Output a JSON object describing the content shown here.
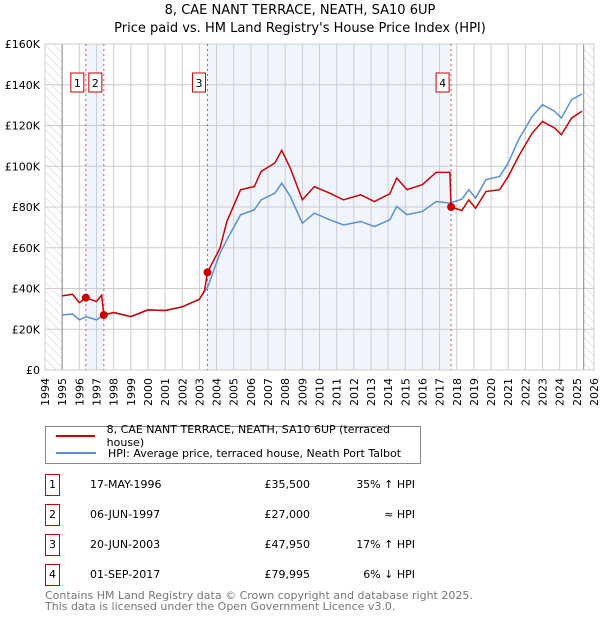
{
  "chart_data": {
    "type": "line",
    "title": "8, CAE NANT TERRACE, NEATH, SA10 6UP",
    "subtitle": "Price paid vs. HM Land Registry's House Price Index (HPI)",
    "xlim": [
      1994,
      2026
    ],
    "ylim": [
      0,
      160000
    ],
    "x_ticks": [
      "1994",
      "1995",
      "1996",
      "1997",
      "1998",
      "1999",
      "2000",
      "2001",
      "2002",
      "2003",
      "2004",
      "2005",
      "2006",
      "2007",
      "2008",
      "2009",
      "2010",
      "2011",
      "2012",
      "2013",
      "2014",
      "2015",
      "2016",
      "2017",
      "2018",
      "2019",
      "2020",
      "2021",
      "2022",
      "2023",
      "2024",
      "2025",
      "2026"
    ],
    "y_ticks": [
      {
        "v": 0,
        "label": "£0"
      },
      {
        "v": 20000,
        "label": "£20K"
      },
      {
        "v": 40000,
        "label": "£40K"
      },
      {
        "v": 60000,
        "label": "£60K"
      },
      {
        "v": 80000,
        "label": "£80K"
      },
      {
        "v": 100000,
        "label": "£100K"
      },
      {
        "v": 120000,
        "label": "£120K"
      },
      {
        "v": 140000,
        "label": "£140K"
      },
      {
        "v": 160000,
        "label": "£160K"
      }
    ],
    "grid": true,
    "series": [
      {
        "name": "8, CAE NANT TERRACE, NEATH, SA10 6UP (terraced house)",
        "color": "#cc0000",
        "x": [
          1995,
          1995.6,
          1996,
          1996.38,
          1997,
          1997.3,
          1997.43,
          1998,
          1999,
          2000,
          2001,
          2002,
          2003,
          2003.3,
          2003.47,
          2004.2,
          2004.6,
          2005.4,
          2006.2,
          2006.6,
          2007.4,
          2007.8,
          2008.3,
          2009,
          2009.7,
          2010.6,
          2011.4,
          2012.4,
          2013.2,
          2014.1,
          2014.5,
          2015.1,
          2016,
          2016.8,
          2017.6,
          2017.67,
          2018.3,
          2018.7,
          2019.1,
          2019.7,
          2020.5,
          2021,
          2021.6,
          2022.4,
          2023,
          2023.7,
          2024.1,
          2024.7,
          2025.3
        ],
        "y": [
          36400,
          37200,
          33000,
          35500,
          33600,
          36700,
          27000,
          28200,
          26200,
          29500,
          29200,
          31000,
          34700,
          39000,
          47950,
          59800,
          72900,
          88500,
          90000,
          97500,
          101600,
          107800,
          99000,
          83500,
          90000,
          86800,
          83500,
          86000,
          82700,
          86500,
          94200,
          88500,
          91000,
          97000,
          97000,
          79995,
          78300,
          83500,
          79400,
          87600,
          88500,
          95000,
          104800,
          116300,
          122000,
          118800,
          115500,
          123700,
          127000
        ]
      },
      {
        "name": "HPI: Average price, terraced house, Neath Port Talbot",
        "color": "#5b8fd4",
        "x": [
          1995,
          1995.6,
          1996,
          1996.4,
          1997,
          1997.43,
          1998,
          1999,
          2000,
          2001,
          2002,
          2003,
          2003.5,
          2004.2,
          2004.6,
          2005.4,
          2006.2,
          2006.6,
          2007.4,
          2007.8,
          2008.3,
          2009,
          2009.7,
          2010.6,
          2011.4,
          2012.4,
          2013.2,
          2014.1,
          2014.5,
          2015.1,
          2016,
          2016.8,
          2017.6,
          2018.3,
          2018.7,
          2019.1,
          2019.7,
          2020.5,
          2021,
          2021.6,
          2022.4,
          2023,
          2023.7,
          2024.1,
          2024.7,
          2025.3
        ],
        "y": [
          27000,
          27500,
          24600,
          26200,
          24600,
          27000,
          28200,
          26200,
          29500,
          29200,
          31000,
          34700,
          41000,
          57300,
          63900,
          76200,
          78600,
          83500,
          86800,
          91700,
          85200,
          72000,
          77000,
          73700,
          71200,
          72900,
          70400,
          73700,
          80300,
          76200,
          77800,
          82700,
          81900,
          83900,
          88500,
          84400,
          93400,
          95000,
          101600,
          113000,
          124500,
          130200,
          127000,
          123700,
          132700,
          135500
        ]
      }
    ],
    "sales": [
      {
        "n": "1",
        "x": 1996.38,
        "y": 35500,
        "date": "17-MAY-1996",
        "price": "£35,500",
        "hpi": "35% ↑ HPI"
      },
      {
        "n": "2",
        "x": 1997.43,
        "y": 27000,
        "date": "06-JUN-1997",
        "price": "£27,000",
        "hpi": "≈ HPI"
      },
      {
        "n": "3",
        "x": 2003.47,
        "y": 47950,
        "date": "20-JUN-2003",
        "price": "£47,950",
        "hpi": "17% ↑ HPI"
      },
      {
        "n": "4",
        "x": 2017.67,
        "y": 79995,
        "date": "01-SEP-2017",
        "price": "£79,995",
        "hpi": "6% ↓ HPI"
      }
    ]
  },
  "legend": {
    "red": "8, CAE NANT TERRACE, NEATH, SA10 6UP (terraced house)",
    "blue": "HPI: Average price, terraced house, Neath Port Talbot"
  },
  "footer": {
    "line1": "Contains HM Land Registry data © Crown copyright and database right 2025.",
    "line2": "This data is licensed under the Open Government Licence v3.0."
  }
}
